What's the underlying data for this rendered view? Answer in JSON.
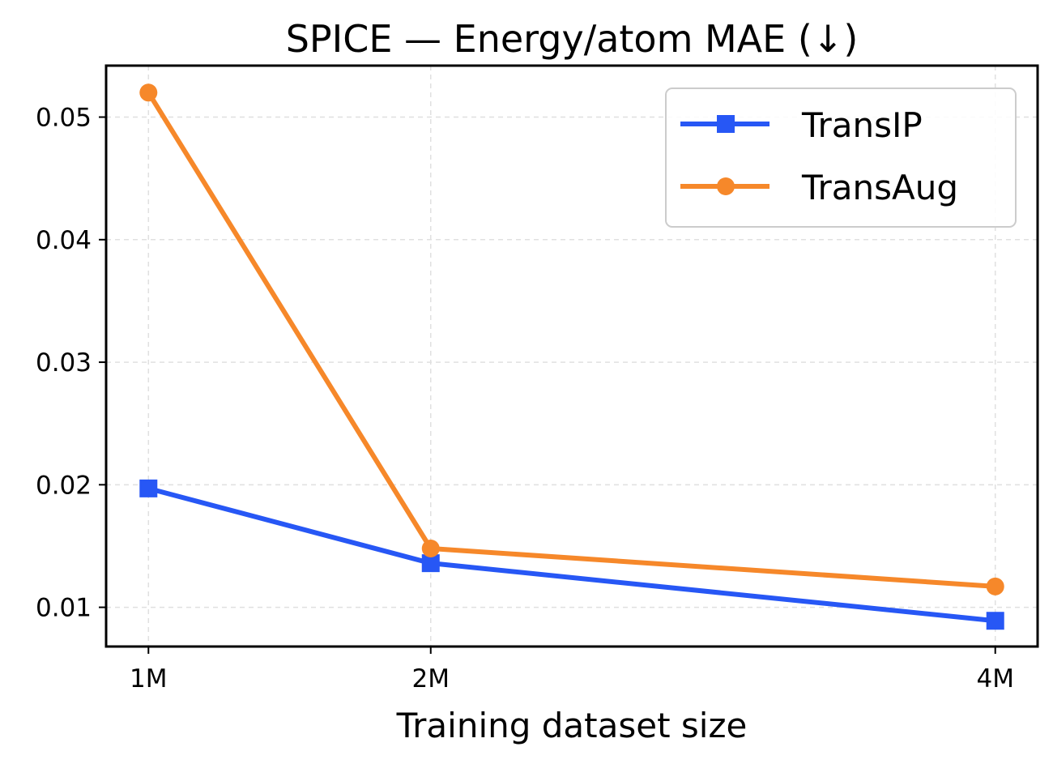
{
  "chart_data": {
    "type": "line",
    "title": "SPICE — Energy/atom MAE (↓)",
    "xlabel": "Training dataset size",
    "ylabel": "",
    "x": [
      1,
      2,
      4
    ],
    "categories": [
      "1M",
      "2M",
      "4M"
    ],
    "xlim": [
      0.85,
      4.15
    ],
    "ylim": [
      0.0068,
      0.0542
    ],
    "yticks": [
      0.01,
      0.02,
      0.03,
      0.04,
      0.05
    ],
    "ytick_labels": [
      "0.01",
      "0.02",
      "0.03",
      "0.04",
      "0.05"
    ],
    "grid": true,
    "legend_position": "top-right",
    "series": [
      {
        "name": "TransIP",
        "values": [
          0.0197,
          0.0136,
          0.0089
        ],
        "color": "#2757f5",
        "marker": "square"
      },
      {
        "name": "TransAug",
        "values": [
          0.052,
          0.0148,
          0.0117
        ],
        "color": "#f6882a",
        "marker": "circle"
      }
    ]
  }
}
